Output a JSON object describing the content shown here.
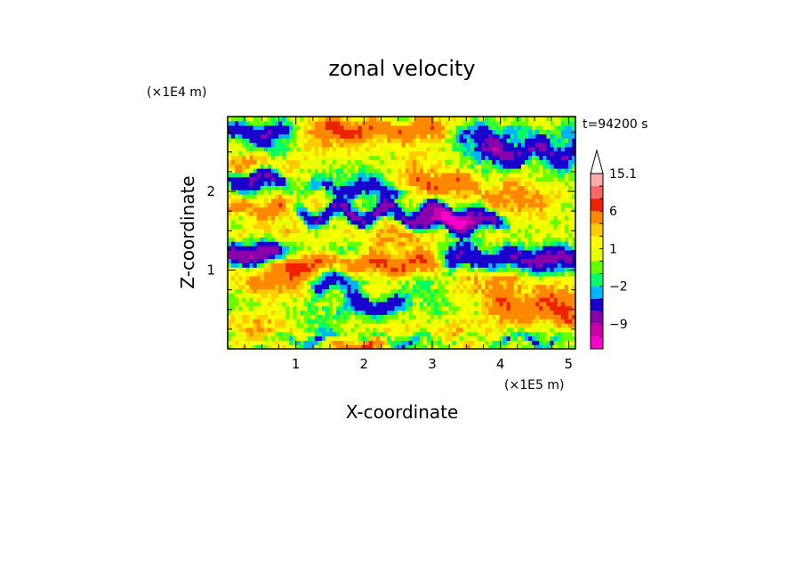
{
  "chart_data": {
    "type": "heatmap",
    "title": "zonal velocity",
    "xlabel": "X-coordinate",
    "ylabel": "Z-coordinate",
    "x_unit": "(×1E5 m)",
    "y_unit": "(×1E4 m)",
    "annotation": "t=94200 s",
    "xlim": [
      0.0,
      5.1
    ],
    "ylim": [
      0.0,
      2.95
    ],
    "x_ticks": [
      {
        "value": 1,
        "label": "1"
      },
      {
        "value": 2,
        "label": "2"
      },
      {
        "value": 3,
        "label": "3"
      },
      {
        "value": 4,
        "label": "4"
      },
      {
        "value": 5,
        "label": "5"
      }
    ],
    "y_ticks": [
      {
        "value": 1,
        "label": "1"
      },
      {
        "value": 2,
        "label": "2"
      }
    ],
    "colorbar": {
      "levels": [
        -15,
        -12,
        -9,
        -6,
        -3,
        -2,
        -1,
        0,
        1,
        2,
        3,
        6,
        9,
        12,
        15.1
      ],
      "colors": [
        "#ff00cc",
        "#cc00aa",
        "#8800aa",
        "#1a00cc",
        "#00b4ff",
        "#00ff66",
        "#66ff00",
        "#e6ff00",
        "#ffff00",
        "#ffcc00",
        "#ff8800",
        "#ee2200",
        "#ff6666",
        "#ffaaaa"
      ],
      "over_color": "#ffffff",
      "labels": [
        {
          "value": 15.1,
          "label": "15.1"
        },
        {
          "value": 6,
          "label": "6"
        },
        {
          "value": 1,
          "label": "1"
        },
        {
          "value": -2,
          "label": "−2"
        },
        {
          "value": -9,
          "label": "−9"
        }
      ]
    },
    "bands": [
      {
        "z": 2.75,
        "x0": 0.0,
        "x1": 0.9,
        "v": -5.0,
        "h": 0.12,
        "jitter": 0.05
      },
      {
        "z": 2.68,
        "x0": 0.9,
        "x1": 3.0,
        "v": 1.2,
        "h": 0.18,
        "jitter": 0.05
      },
      {
        "z": 2.8,
        "x0": 1.4,
        "x1": 3.1,
        "v": 5.0,
        "h": 0.12,
        "jitter": 0.05
      },
      {
        "z": 2.72,
        "x0": 3.4,
        "x1": 5.1,
        "v": -3.0,
        "h": 0.16,
        "jitter": 0.06
      },
      {
        "z": 2.5,
        "x0": 3.8,
        "x1": 5.1,
        "v": -6.5,
        "h": 0.14,
        "jitter": 0.08
      },
      {
        "z": 2.35,
        "x0": 0.0,
        "x1": 1.0,
        "v": 3.5,
        "h": 0.12,
        "jitter": 0.05
      },
      {
        "z": 2.15,
        "x0": 0.0,
        "x1": 0.8,
        "v": -7.0,
        "h": 0.13,
        "jitter": 0.06
      },
      {
        "z": 2.05,
        "x0": 1.1,
        "x1": 2.6,
        "v": -3.5,
        "h": 0.1,
        "jitter": 0.06
      },
      {
        "z": 2.1,
        "x0": 2.6,
        "x1": 3.5,
        "v": 4.5,
        "h": 0.12,
        "jitter": 0.05
      },
      {
        "z": 1.95,
        "x0": 3.4,
        "x1": 5.1,
        "v": 2.2,
        "h": 0.18,
        "jitter": 0.07
      },
      {
        "z": 1.78,
        "x0": 0.0,
        "x1": 0.9,
        "v": 4.8,
        "h": 0.14,
        "jitter": 0.05
      },
      {
        "z": 1.72,
        "x0": 1.0,
        "x1": 3.6,
        "v": -7.0,
        "h": 0.1,
        "jitter": 0.1
      },
      {
        "z": 1.62,
        "x0": 2.8,
        "x1": 4.0,
        "v": -7.5,
        "h": 0.1,
        "jitter": 0.06
      },
      {
        "z": 1.5,
        "x0": 0.0,
        "x1": 1.0,
        "v": 2.2,
        "h": 0.12,
        "jitter": 0.06
      },
      {
        "z": 1.45,
        "x0": 1.3,
        "x1": 3.1,
        "v": 1.5,
        "h": 0.12,
        "jitter": 0.05
      },
      {
        "z": 1.35,
        "x0": 3.8,
        "x1": 5.1,
        "v": 1.2,
        "h": 0.14,
        "jitter": 0.06
      },
      {
        "z": 1.2,
        "x0": 0.0,
        "x1": 0.85,
        "v": -9.5,
        "h": 0.14,
        "jitter": 0.04
      },
      {
        "z": 1.15,
        "x0": 3.2,
        "x1": 5.1,
        "v": -6.5,
        "h": 0.16,
        "jitter": 0.05
      },
      {
        "z": 1.08,
        "x0": 0.75,
        "x1": 3.1,
        "v": 5.5,
        "h": 0.13,
        "jitter": 0.04
      },
      {
        "z": 0.88,
        "x0": 0.0,
        "x1": 1.2,
        "v": 3.0,
        "h": 0.22,
        "jitter": 0.06
      },
      {
        "z": 0.85,
        "x0": 1.2,
        "x1": 1.8,
        "v": -5.0,
        "h": 0.15,
        "jitter": 0.06
      },
      {
        "z": 0.82,
        "x0": 3.2,
        "x1": 5.1,
        "v": 1.5,
        "h": 0.22,
        "jitter": 0.05
      },
      {
        "z": 0.55,
        "x0": 1.8,
        "x1": 2.5,
        "v": -6.5,
        "h": 0.14,
        "jitter": 0.05
      },
      {
        "z": 0.5,
        "x0": 3.9,
        "x1": 5.1,
        "v": 5.5,
        "h": 0.2,
        "jitter": 0.05
      },
      {
        "z": 0.3,
        "x0": 0.0,
        "x1": 1.2,
        "v": 1.5,
        "h": 0.15,
        "jitter": 0.06
      },
      {
        "z": 0.22,
        "x0": 2.2,
        "x1": 4.3,
        "v": 0.8,
        "h": 0.14,
        "jitter": 0.06
      },
      {
        "z": 0.12,
        "x0": 0.0,
        "x1": 5.1,
        "v": -2.5,
        "h": 0.06,
        "jitter": 0.08
      },
      {
        "z": 0.05,
        "x0": 1.6,
        "x1": 2.2,
        "v": 7.0,
        "h": 0.08,
        "jitter": 0.04
      }
    ]
  }
}
